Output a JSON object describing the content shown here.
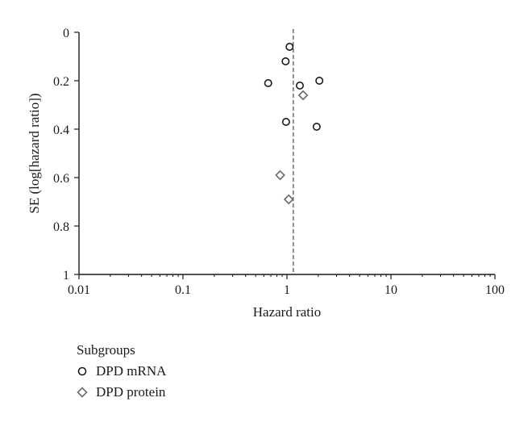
{
  "chart_data": {
    "type": "scatter",
    "title": "",
    "xlabel": "Hazard ratio",
    "ylabel": "SE (log[hazard ratio])",
    "x_scale": "log",
    "xlim": [
      0.01,
      100
    ],
    "ylim": [
      0,
      1
    ],
    "y_inverted": true,
    "x_ticks": [
      "0.01",
      "0.1",
      "1",
      "10",
      "100"
    ],
    "y_ticks": [
      "0",
      "0.2",
      "0.4",
      "0.6",
      "0.8",
      "1"
    ],
    "reference_line": {
      "x": 1.15,
      "style": "dashed"
    },
    "grid": false,
    "legend": {
      "title": "Subgroups",
      "placement": "bottom-left"
    },
    "series": [
      {
        "name": "DPD mRNA",
        "marker": "circle",
        "points": [
          {
            "x": 1.06,
            "y": 0.06
          },
          {
            "x": 0.97,
            "y": 0.12
          },
          {
            "x": 0.66,
            "y": 0.21
          },
          {
            "x": 1.33,
            "y": 0.22
          },
          {
            "x": 2.05,
            "y": 0.2
          },
          {
            "x": 0.98,
            "y": 0.37
          },
          {
            "x": 1.93,
            "y": 0.39
          }
        ]
      },
      {
        "name": "DPD protein",
        "marker": "diamond",
        "points": [
          {
            "x": 1.43,
            "y": 0.26
          },
          {
            "x": 0.86,
            "y": 0.59
          },
          {
            "x": 1.04,
            "y": 0.69
          }
        ]
      }
    ]
  },
  "colors": {
    "marker_stroke": "#1a1a1a",
    "diamond_stroke": "#6b6b6b",
    "axis": "#1a1a1a"
  }
}
